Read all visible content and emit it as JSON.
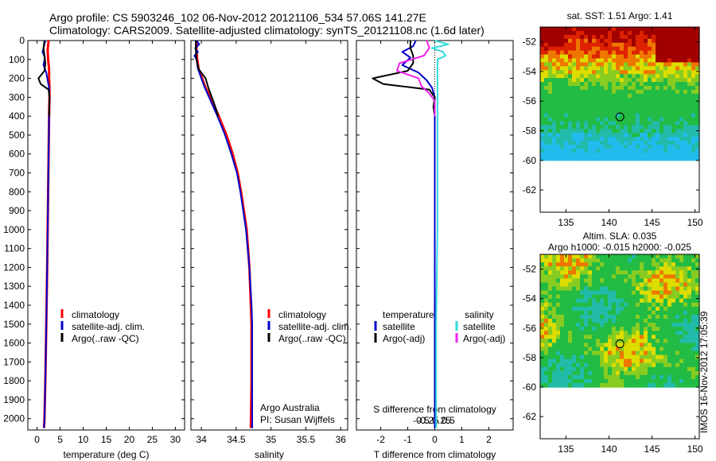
{
  "title_line1": "Argo profile: CS 5903246_102 06-Nov-2012 20121106_534 57.06S 141.27E",
  "title_line2": "Climatology: CARS2009. Satellite-adjusted climatology: synTS_20121108.nc (1.6d later)",
  "watermark": "IMOS 16-Nov-2012 17:05:39",
  "colors": {
    "climatology": "#ff0000",
    "satellite": "#0000cc",
    "argo": "#000000",
    "sat_salinity": "#33dddd",
    "argo_salinity": "#ee22ee"
  },
  "depth_ticks": [
    "0",
    "100",
    "200",
    "300",
    "400",
    "500",
    "600",
    "700",
    "800",
    "900",
    "1000",
    "1100",
    "1200",
    "1300",
    "1400",
    "1500",
    "1600",
    "1700",
    "1800",
    "1900",
    "2000"
  ],
  "chart_data": [
    {
      "type": "line",
      "panel": "temperature",
      "xlabel": "temperature (deg C)",
      "xlim": [
        -2,
        32
      ],
      "ylim": [
        0,
        2060
      ],
      "y_inverted": true,
      "xticks": [
        "0",
        "5",
        "10",
        "15",
        "20",
        "25",
        "30"
      ],
      "legend": [
        "climatology",
        "satellite-adj. clim.",
        "Argo(..raw -QC)"
      ],
      "series": [
        {
          "name": "climatology",
          "depth": [
            0,
            50,
            100,
            150,
            200,
            250,
            300,
            400,
            600,
            800,
            1000,
            1200,
            1500,
            1800,
            2000,
            2050
          ],
          "values": [
            2.5,
            2.3,
            2.4,
            2.6,
            2.6,
            2.7,
            2.7,
            2.6,
            2.5,
            2.4,
            2.3,
            2.2,
            2.0,
            1.8,
            1.6,
            1.5
          ]
        },
        {
          "name": "satellite-adj. clim.",
          "depth": [
            0,
            30,
            60,
            90,
            130,
            170,
            210,
            250,
            300,
            400,
            600,
            800,
            1000,
            1200,
            1500,
            1800,
            2000,
            2050
          ],
          "values": [
            1.8,
            1.5,
            1.2,
            1.7,
            1.4,
            2.0,
            2.3,
            2.6,
            2.7,
            2.6,
            2.5,
            2.4,
            2.3,
            2.2,
            2.0,
            1.8,
            1.6,
            1.5
          ]
        },
        {
          "name": "Argo(..raw -QC)",
          "depth": [
            0,
            40,
            80,
            120,
            160,
            200,
            230,
            260,
            300,
            400
          ],
          "values": [
            1.6,
            1.4,
            1.6,
            1.8,
            1.6,
            0.3,
            0.8,
            2.5,
            2.7,
            2.6
          ]
        }
      ]
    },
    {
      "type": "line",
      "panel": "salinity",
      "xlabel": "salinity",
      "xlim": [
        33.85,
        36.1
      ],
      "ylim": [
        0,
        2060
      ],
      "y_inverted": true,
      "xticks": [
        "34",
        "34.5",
        "35",
        "35.5",
        "36"
      ],
      "legend": [
        "climatology",
        "satellite-adj. clim.",
        "Argo(..raw -QC)"
      ],
      "annotation": [
        "Argo Australia",
        "PI: Susan Wijffels"
      ],
      "series": [
        {
          "name": "climatology",
          "depth": [
            0,
            50,
            100,
            150,
            200,
            250,
            300,
            400,
            500,
            600,
            700,
            800,
            1000,
            1200,
            1400,
            1500,
            1800,
            2050
          ],
          "values": [
            33.93,
            33.93,
            33.94,
            33.96,
            34.01,
            34.06,
            34.13,
            34.25,
            34.36,
            34.45,
            34.52,
            34.57,
            34.65,
            34.69,
            34.71,
            34.72,
            34.72,
            34.71
          ]
        },
        {
          "name": "satellite-adj. clim.",
          "depth": [
            0,
            20,
            40,
            60,
            80,
            100,
            150,
            200,
            250,
            300,
            400,
            500,
            600,
            700,
            800,
            1000,
            1200,
            1400,
            1500,
            1800,
            2050
          ],
          "values": [
            33.93,
            33.97,
            33.91,
            33.95,
            33.9,
            33.93,
            33.95,
            34.0,
            34.05,
            34.11,
            34.23,
            34.34,
            34.43,
            34.51,
            34.56,
            34.64,
            34.69,
            34.72,
            34.73,
            34.73,
            34.73
          ]
        },
        {
          "name": "Argo(..raw -QC)",
          "depth": [
            0,
            50,
            100,
            150,
            200,
            250,
            300,
            350,
            400
          ],
          "values": [
            33.92,
            33.92,
            33.93,
            33.96,
            34.06,
            34.1,
            34.15,
            34.2,
            34.24
          ]
        }
      ]
    },
    {
      "type": "line",
      "panel": "difference",
      "xlabel": "T difference from climatology",
      "xlabel2": "S difference from climatology",
      "xlim": [
        -2.9,
        2.9
      ],
      "ylim": [
        0,
        2060
      ],
      "y_inverted": true,
      "xticks": [
        "-2",
        "-1",
        "0",
        "1",
        "2"
      ],
      "xticks2": [
        "-0.5",
        "-0.25",
        "0",
        "0.25",
        "0.5"
      ],
      "legend_temperature": {
        "title": "temperature",
        "items": [
          "satellite",
          "Argo(-adj)"
        ]
      },
      "legend_salinity": {
        "title": "salinity",
        "items": [
          "satellite",
          "Argo(-adj)"
        ]
      },
      "series": [
        {
          "name": "temperature satellite",
          "depth": [
            0,
            30,
            60,
            90,
            130,
            170,
            210,
            250,
            300,
            500,
            1000,
            1500,
            2050
          ],
          "values": [
            -0.7,
            -0.8,
            -1.2,
            -0.9,
            -1.2,
            -0.6,
            -0.3,
            -0.1,
            0.0,
            0.0,
            0.0,
            0.0,
            0.0
          ]
        },
        {
          "name": "temperature Argo(-adj)",
          "depth": [
            0,
            40,
            80,
            120,
            160,
            200,
            230,
            260,
            300,
            350,
            400
          ],
          "values": [
            -0.9,
            -0.9,
            -0.8,
            -0.8,
            -1.0,
            -2.3,
            -1.9,
            -0.2,
            0.0,
            -0.05,
            0.0
          ]
        },
        {
          "name": "salinity satellite",
          "depth": [
            0,
            20,
            40,
            60,
            80,
            100,
            150,
            200,
            300,
            500,
            1000,
            1500,
            2050
          ],
          "values": [
            0.0,
            0.5,
            -0.1,
            0.3,
            0.4,
            0.1,
            0.1,
            0.1,
            0.1,
            0.1,
            0.1,
            0.05,
            0.05
          ]
        },
        {
          "name": "salinity Argo(-adj)",
          "depth": [
            0,
            40,
            80,
            120,
            160,
            200,
            240,
            280,
            320,
            400
          ],
          "values": [
            -0.3,
            -0.2,
            -0.4,
            -1.3,
            -1.4,
            -0.6,
            -0.5,
            -0.2,
            0.0,
            0.0
          ]
        }
      ]
    },
    {
      "type": "heatmap",
      "panel": "map_sst",
      "title": "sat. SST: 1.51 Argo: 1.41",
      "xticks": [
        "135",
        "140",
        "145",
        "150"
      ],
      "yticks": [
        "-52",
        "-54",
        "-56",
        "-58",
        "-60",
        "-62"
      ],
      "xlim": [
        132,
        150.5
      ],
      "ylim": [
        -63.5,
        -51
      ],
      "data_extent": {
        "lon": [
          132,
          150.5
        ],
        "lat": [
          -60,
          -51
        ]
      },
      "marker": {
        "lon": 141.27,
        "lat": -57.06
      }
    },
    {
      "type": "heatmap",
      "panel": "map_sla",
      "title_line1": "Altim. SLA: 0.035",
      "title_line2": "Argo h1000: -0.015 h2000: -0.025",
      "xticks": [
        "135",
        "140",
        "145",
        "150"
      ],
      "yticks": [
        "-52",
        "-54",
        "-56",
        "-58",
        "-60",
        "-62"
      ],
      "xlim": [
        132,
        150.5
      ],
      "ylim": [
        -63.5,
        -51
      ],
      "data_extent": {
        "lon": [
          132,
          150.5
        ],
        "lat": [
          -60,
          -51
        ]
      },
      "marker": {
        "lon": 141.27,
        "lat": -57.06
      }
    }
  ]
}
